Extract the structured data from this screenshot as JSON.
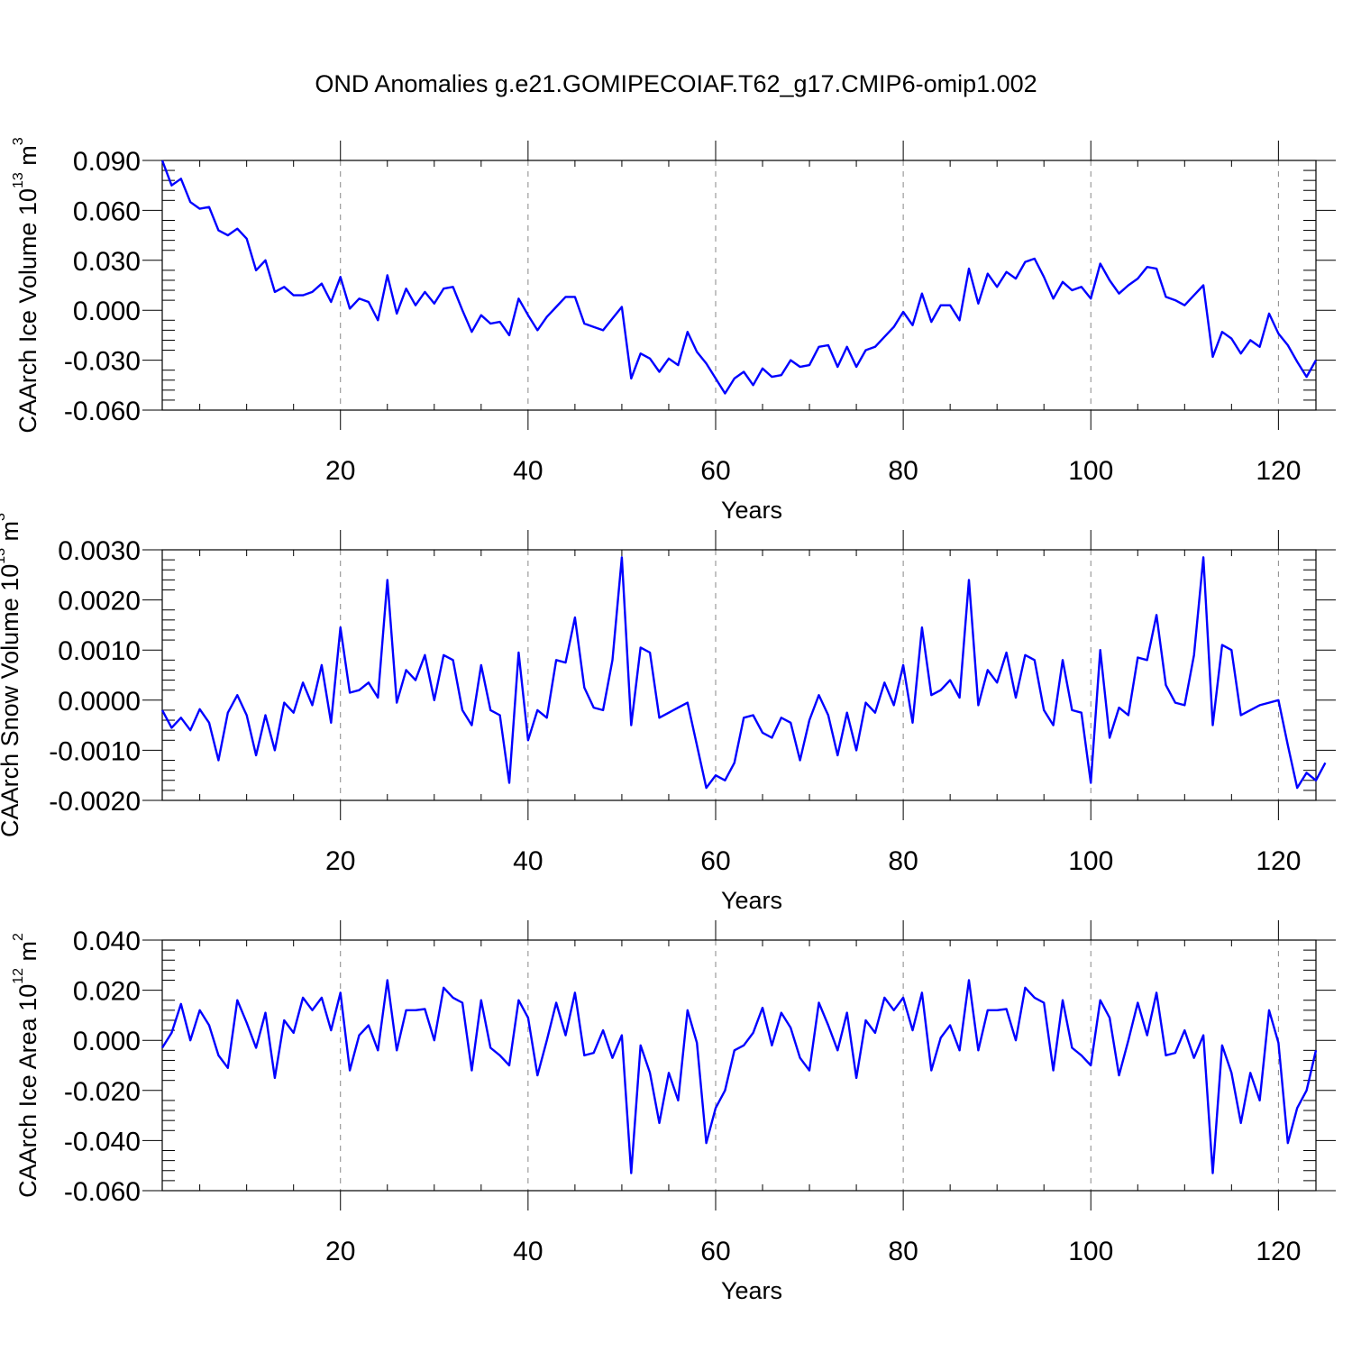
{
  "chart_data": {
    "title": "OND Anomalies g.e21.GOMIPECOIAF.T62_g17.CMIP6-omip1.002",
    "panels": [
      {
        "type": "line",
        "ylabel": "CAArch Ice Volume 10",
        "ylabel_exp": "13",
        "ylabel_unit": " m",
        "ylabel_unit_exp": "3",
        "xlabel": "Years",
        "xlim": [
          1,
          124
        ],
        "ylim": [
          -0.06,
          0.09
        ],
        "yticks": [
          -0.06,
          -0.03,
          0.0,
          0.03,
          0.06,
          0.09
        ],
        "ytick_labels": [
          "-0.060",
          "-0.030",
          "0.000",
          "0.030",
          "0.060",
          "0.090"
        ],
        "xticks": [
          20,
          40,
          60,
          80,
          100,
          120
        ],
        "xtick_labels": [
          "20",
          "40",
          "60",
          "80",
          "100",
          "120"
        ],
        "series": [
          {
            "name": "ice_volume",
            "color": "#0000ff",
            "values": [
              0.09,
              0.075,
              0.079,
              0.065,
              0.061,
              0.062,
              0.048,
              0.045,
              0.049,
              0.043,
              0.024,
              0.03,
              0.011,
              0.014,
              0.009,
              0.009,
              0.011,
              0.016,
              0.005,
              0.02,
              0.001,
              0.007,
              0.005,
              -0.006,
              0.021,
              -0.002,
              0.013,
              0.003,
              0.011,
              0.004,
              0.013,
              0.014,
              0.0,
              -0.013,
              -0.003,
              -0.008,
              -0.007,
              -0.015,
              0.007,
              -0.003,
              -0.012,
              -0.004,
              0.002,
              0.008,
              0.008,
              -0.008,
              -0.01,
              -0.012,
              -0.005,
              0.002,
              -0.041,
              -0.026,
              -0.029,
              -0.037,
              -0.029,
              -0.033,
              -0.013,
              -0.025,
              -0.032,
              -0.041,
              -0.05,
              -0.041,
              -0.037,
              -0.045,
              -0.035,
              -0.04,
              -0.039,
              -0.03,
              -0.034,
              -0.033,
              -0.022,
              -0.021,
              -0.034,
              -0.022,
              -0.034,
              -0.024,
              -0.022,
              -0.016,
              -0.01,
              -0.001,
              -0.009,
              0.01,
              -0.007,
              0.003,
              0.003,
              -0.006,
              0.025,
              0.004,
              0.022,
              0.014,
              0.023,
              0.019,
              0.029,
              0.031,
              0.02,
              0.007,
              0.017,
              0.012,
              0.014,
              0.007,
              0.028,
              0.018,
              0.01,
              0.015,
              0.019,
              0.026,
              0.025,
              0.008,
              0.006,
              0.003,
              0.009,
              0.015,
              -0.028,
              -0.013,
              -0.017,
              -0.026,
              -0.018,
              -0.022,
              -0.002,
              -0.014,
              -0.021,
              -0.031,
              -0.04,
              -0.03
            ]
          }
        ]
      },
      {
        "type": "line",
        "ylabel": "CAArch Snow Volume 10",
        "ylabel_exp": "13",
        "ylabel_unit": " m",
        "ylabel_unit_exp": "3",
        "xlabel": "Years",
        "xlim": [
          1,
          124
        ],
        "ylim": [
          -0.002,
          0.003
        ],
        "yticks": [
          -0.002,
          -0.001,
          0.0,
          0.001,
          0.002,
          0.003
        ],
        "ytick_labels": [
          "-0.0020",
          "-0.0010",
          "0.0000",
          "0.0010",
          "0.0020",
          "0.0030"
        ],
        "xticks": [
          20,
          40,
          60,
          80,
          100,
          120
        ],
        "xtick_labels": [
          "20",
          "40",
          "60",
          "80",
          "100",
          "120"
        ],
        "series": [
          {
            "name": "snow_volume",
            "color": "#0000ff",
            "values": [
              -0.0002,
              -0.00055,
              -0.00035,
              -0.0006,
              -0.00018,
              -0.00045,
              -0.0012,
              -0.00025,
              0.0001,
              -0.0003,
              -0.0011,
              -0.0003,
              -0.001,
              -5e-05,
              -0.00025,
              0.00035,
              -0.0001,
              0.0007,
              -0.00045,
              0.00145,
              0.00015,
              0.0002,
              0.00035,
              5e-05,
              0.0024,
              -5e-05,
              0.0006,
              0.0004,
              0.0009,
              0.0,
              0.0009,
              0.0008,
              -0.0002,
              -0.0005,
              0.0007,
              -0.0002,
              -0.0003,
              -0.00165,
              0.00095,
              -0.0008,
              -0.0002,
              -0.00035,
              0.0008,
              0.00075,
              0.00165,
              0.00025,
              -0.00015,
              -0.0002,
              0.0008,
              0.00285,
              -0.0005,
              0.00105,
              0.00095,
              -0.00035,
              -0.00025,
              -0.00015,
              -5e-05,
              -0.0009,
              -0.00175,
              -0.0015,
              -0.0016,
              -0.00125,
              -0.00035,
              -0.0003,
              -0.00065,
              -0.00075,
              -0.00035,
              -0.00045,
              -0.0012,
              -0.0004,
              0.0001,
              -0.0003,
              -0.0011,
              -0.00025,
              -0.001,
              -5e-05,
              -0.00025,
              0.00035,
              -0.0001,
              0.0007,
              -0.00045,
              0.00145,
              0.0001,
              0.0002,
              0.0004,
              5e-05,
              0.0024,
              -0.0001,
              0.0006,
              0.00035,
              0.00095,
              5e-05,
              0.0009,
              0.0008,
              -0.0002,
              -0.0005,
              0.0008,
              -0.0002,
              -0.00025,
              -0.00165,
              0.001,
              -0.00075,
              -0.00015,
              -0.0003,
              0.00085,
              0.0008,
              0.0017,
              0.0003,
              -5e-05,
              -0.0001,
              0.0009,
              0.00285,
              -0.0005,
              0.0011,
              0.001,
              -0.0003,
              -0.0002,
              -0.0001,
              -5e-05,
              0.0,
              -0.0009,
              -0.00175,
              -0.00145,
              -0.0016,
              -0.00125
            ]
          }
        ]
      },
      {
        "type": "line",
        "ylabel": "CAArch Ice Area 10",
        "ylabel_exp": "12",
        "ylabel_unit": " m",
        "ylabel_unit_exp": "2",
        "xlabel": "Years",
        "xlim": [
          1,
          124
        ],
        "ylim": [
          -0.06,
          0.04
        ],
        "yticks": [
          -0.06,
          -0.04,
          -0.02,
          0.0,
          0.02,
          0.04
        ],
        "ytick_labels": [
          "-0.060",
          "-0.040",
          "-0.020",
          "0.000",
          "0.020",
          "0.040"
        ],
        "xticks": [
          20,
          40,
          60,
          80,
          100,
          120
        ],
        "xtick_labels": [
          "20",
          "40",
          "60",
          "80",
          "100",
          "120"
        ],
        "series": [
          {
            "name": "ice_area",
            "color": "#0000ff",
            "values": [
              -0.003,
              0.003,
              0.0145,
              0.0,
              0.012,
              0.006,
              -0.006,
              -0.011,
              0.016,
              0.007,
              -0.003,
              0.011,
              -0.015,
              0.008,
              0.003,
              0.017,
              0.012,
              0.017,
              0.004,
              0.019,
              -0.012,
              0.002,
              0.006,
              -0.004,
              0.024,
              -0.004,
              0.012,
              0.012,
              0.0125,
              0.0,
              0.021,
              0.017,
              0.015,
              -0.012,
              0.016,
              -0.003,
              -0.006,
              -0.01,
              0.016,
              0.009,
              -0.014,
              0.0,
              0.015,
              0.002,
              0.019,
              -0.006,
              -0.005,
              0.004,
              -0.007,
              0.002,
              -0.053,
              -0.002,
              -0.013,
              -0.033,
              -0.013,
              -0.024,
              0.012,
              -0.001,
              -0.041,
              -0.027,
              -0.02,
              -0.004,
              -0.002,
              0.003,
              0.013,
              -0.002,
              0.011,
              0.005,
              -0.007,
              -0.012,
              0.015,
              0.006,
              -0.004,
              0.011,
              -0.015,
              0.008,
              0.003,
              0.017,
              0.012,
              0.017,
              0.004,
              0.019,
              -0.012,
              0.001,
              0.006,
              -0.004,
              0.024,
              -0.004,
              0.012,
              0.012,
              0.0125,
              0.0,
              0.021,
              0.017,
              0.015,
              -0.012,
              0.016,
              -0.003,
              -0.006,
              -0.01,
              0.016,
              0.009,
              -0.014,
              0.0,
              0.015,
              0.002,
              0.019,
              -0.006,
              -0.005,
              0.004,
              -0.007,
              0.002,
              -0.053,
              -0.002,
              -0.013,
              -0.033,
              -0.013,
              -0.024,
              0.012,
              -0.001,
              -0.041,
              -0.027,
              -0.02,
              -0.004
            ]
          }
        ]
      }
    ]
  }
}
